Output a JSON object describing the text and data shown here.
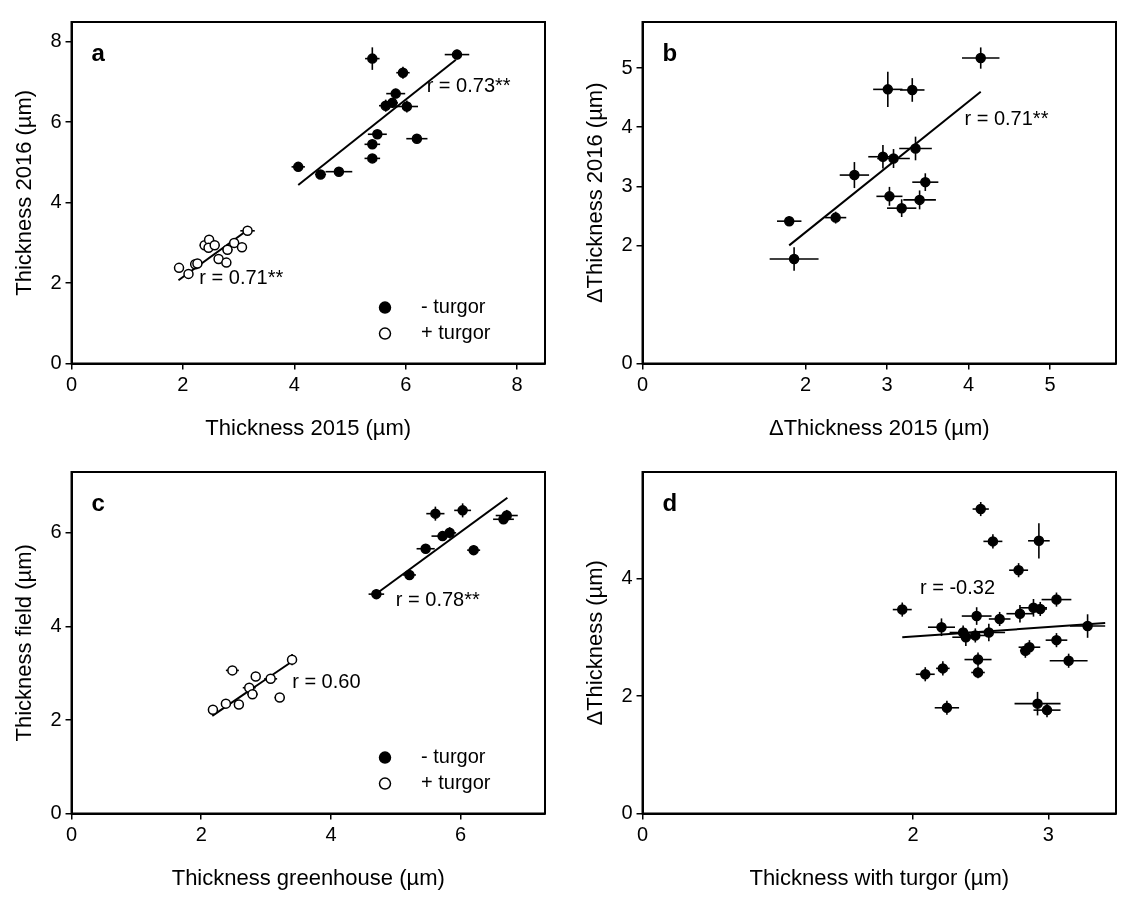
{
  "chart_data": [
    {
      "type": "scatter",
      "xlabel": "Thickness 2015 (µm)",
      "ylabel": "Thickness 2016 (µm)",
      "legend": "bottom right",
      "xlim": [
        0,
        8.5
      ],
      "xticks": [
        0,
        2,
        4,
        6,
        8
      ],
      "ylim": [
        0,
        8.49
      ],
      "yticks": [
        0,
        2,
        4,
        6,
        8
      ],
      "annotations": [
        "a",
        "r = 0.73**",
        "r = 0.71**"
      ],
      "series": [
        {
          "name": "- turgor",
          "color": "#000000",
          "marker": "circle",
          "x": [
            5.4,
            6.92,
            5.95,
            5.82,
            5.76,
            5.64,
            6.02,
            5.49,
            6.2,
            5.4,
            5.4,
            4.07,
            4.47,
            4.8
          ],
          "values": [
            7.58,
            7.68,
            7.23,
            6.71,
            6.48,
            6.41,
            6.39,
            5.7,
            5.59,
            5.45,
            5.1,
            4.89,
            4.7,
            4.77
          ],
          "xerrors": [
            0.13,
            0.22,
            0.12,
            0.17,
            0.1,
            0.12,
            0.2,
            0.17,
            0.19,
            0.14,
            0.14,
            0.12,
            0.1,
            0.24
          ],
          "errors": [
            0.28,
            0.12,
            0.15,
            0.12,
            0.1,
            0.15,
            0.15,
            0.09,
            0.09,
            0.09,
            0.09,
            null,
            0.09,
            0.1
          ]
        },
        {
          "name": "+ turgor",
          "color": "#ffffff",
          "marker": "circle",
          "x": [
            1.93,
            2.1,
            2.22,
            2.26,
            2.39,
            2.47,
            2.46,
            2.57,
            2.64,
            2.78,
            2.8,
            2.92,
            3.06,
            3.16
          ],
          "values": [
            2.38,
            2.23,
            2.47,
            2.49,
            2.94,
            3.08,
            2.88,
            2.94,
            2.6,
            2.51,
            2.83,
            3.0,
            2.89,
            3.3
          ],
          "xerrors": [
            null,
            null,
            0.09,
            0.09,
            0.09,
            null,
            null,
            0.09,
            null,
            null,
            0.09,
            null,
            0.09,
            0.13
          ],
          "errors": [
            null,
            null,
            null,
            null,
            null,
            0.1,
            null,
            null,
            null,
            null,
            null,
            null,
            null,
            0.1
          ]
        },
        {
          "type": "line",
          "color": "#000000",
          "marker": "none",
          "x": [
            4.07,
            6.9
          ],
          "values": [
            4.44,
            7.55
          ]
        },
        {
          "type": "line",
          "color": "#000000",
          "marker": "none",
          "x": [
            1.92,
            3.13
          ],
          "values": [
            2.07,
            3.29
          ]
        }
      ]
    },
    {
      "type": "scatter",
      "xlabel": "ΔThickness 2015 (µm)",
      "ylabel": "ΔThickness 2016 (µm)",
      "xlim": [
        0,
        5.81
      ],
      "xticks": [
        0,
        2,
        3,
        4,
        5
      ],
      "ylim": [
        0,
        5.78
      ],
      "yticks": [
        0,
        2,
        3,
        4,
        5
      ],
      "annotations": [
        "b",
        "r = 0.71**"
      ],
      "series": [
        {
          "color": "#000000",
          "marker": "circle",
          "x": [
            1.8,
            1.86,
            2.37,
            2.6,
            2.95,
            3.08,
            3.01,
            3.31,
            3.35,
            3.03,
            3.18,
            3.4,
            3.47,
            4.15
          ],
          "values": [
            2.41,
            1.77,
            2.47,
            3.19,
            3.5,
            3.47,
            4.64,
            4.63,
            3.64,
            2.83,
            2.63,
            2.77,
            3.07,
            5.17
          ],
          "xerrors": [
            0.15,
            0.3,
            0.13,
            0.18,
            0.18,
            0.2,
            0.18,
            0.15,
            0.2,
            0.16,
            0.18,
            0.2,
            0.16,
            0.23
          ],
          "errors": [
            0.08,
            0.2,
            0.1,
            0.22,
            0.2,
            0.16,
            0.3,
            0.2,
            0.2,
            0.16,
            0.15,
            0.16,
            0.15,
            0.18
          ]
        },
        {
          "type": "line",
          "color": "#000000",
          "marker": "none",
          "x": [
            1.8,
            4.15
          ],
          "values": [
            2.0,
            4.6
          ]
        }
      ]
    },
    {
      "type": "scatter",
      "xlabel": "Thickness greenhouse (µm)",
      "ylabel": "Thickness field (µm)",
      "legend": "bottom right",
      "xlim": [
        0,
        7.3
      ],
      "xticks": [
        0,
        2,
        4,
        6
      ],
      "ylim": [
        0,
        7.3
      ],
      "yticks": [
        0,
        2,
        4,
        6
      ],
      "annotations": [
        "c",
        "r = 0.78**",
        "r = 0.60"
      ],
      "series": [
        {
          "name": "- turgor",
          "color": "#000000",
          "marker": "circle",
          "x": [
            4.7,
            5.21,
            5.46,
            5.61,
            5.72,
            5.83,
            6.03,
            6.2,
            6.66,
            6.71
          ],
          "values": [
            4.69,
            5.1,
            5.66,
            6.41,
            5.93,
            6.0,
            6.48,
            5.63,
            6.29,
            6.37
          ],
          "xerrors": [
            0.12,
            0.1,
            0.14,
            0.14,
            0.17,
            0.1,
            0.13,
            0.1,
            0.16,
            0.17
          ],
          "errors": [
            0.1,
            0.1,
            0.1,
            0.15,
            0.1,
            0.12,
            0.15,
            0.1,
            0.1,
            0.12
          ]
        },
        {
          "name": "+ turgor",
          "color": "#ffffff",
          "marker": "circle",
          "x": [
            2.18,
            2.38,
            2.58,
            2.48,
            2.74,
            2.79,
            2.84,
            3.07,
            3.21,
            3.4
          ],
          "values": [
            2.22,
            2.35,
            2.33,
            3.06,
            2.69,
            2.55,
            2.93,
            2.88,
            2.48,
            3.29
          ],
          "xerrors": [
            null,
            null,
            null,
            0.1,
            0.1,
            0.08,
            null,
            0.1,
            0.08,
            null
          ],
          "errors": [
            null,
            null,
            null,
            null,
            0.09,
            0.1,
            null,
            null,
            null,
            0.12
          ]
        },
        {
          "type": "line",
          "color": "#000000",
          "marker": "none",
          "x": [
            4.72,
            6.72
          ],
          "values": [
            4.72,
            6.75
          ]
        },
        {
          "type": "line",
          "color": "#000000",
          "marker": "none",
          "x": [
            2.17,
            3.4
          ],
          "values": [
            2.09,
            3.25
          ]
        }
      ]
    },
    {
      "type": "scatter",
      "xlabel": "Thickness with turgor (µm)",
      "ylabel": "ΔThickness (µm)",
      "xlim": [
        0,
        3.5
      ],
      "xticks": [
        0,
        2,
        3
      ],
      "ylim": [
        0,
        5.81
      ],
      "yticks": [
        0,
        2,
        4
      ],
      "annotations": [
        "d",
        "r = -0.32"
      ],
      "series": [
        {
          "color": "#000000",
          "marker": "circle",
          "x": [
            1.92,
            2.09,
            2.21,
            2.22,
            2.25,
            2.37,
            2.39,
            2.46,
            2.47,
            2.48,
            2.48,
            2.5,
            2.56,
            2.59,
            2.64,
            2.78,
            2.79,
            2.83,
            2.86,
            2.89,
            2.94,
            2.93,
            2.92,
            2.99,
            3.06,
            3.06,
            3.15,
            3.29
          ],
          "values": [
            3.47,
            2.37,
            3.17,
            2.47,
            1.8,
            3.08,
            3.0,
            3.03,
            3.36,
            2.62,
            2.4,
            5.18,
            3.08,
            4.63,
            3.31,
            4.14,
            3.4,
            2.77,
            2.83,
            3.5,
            3.48,
            4.64,
            1.87,
            1.76,
            3.64,
            2.95,
            2.6,
            3.19
          ],
          "xerrors": [
            0.07,
            0.07,
            0.1,
            0.05,
            0.09,
            0.1,
            0.1,
            0.08,
            0.11,
            0.1,
            0.05,
            0.06,
            0.12,
            0.07,
            0.08,
            0.07,
            0.1,
            0.04,
            0.08,
            0.1,
            0.05,
            0.08,
            0.17,
            0.1,
            0.11,
            0.08,
            0.14,
            0.13
          ],
          "errors": [
            0.12,
            0.12,
            0.15,
            0.12,
            0.12,
            0.12,
            0.15,
            0.12,
            0.15,
            0.12,
            0.1,
            0.12,
            0.15,
            0.12,
            0.12,
            0.12,
            0.15,
            0.12,
            0.12,
            0.15,
            0.12,
            0.3,
            0.2,
            0.12,
            0.12,
            0.12,
            0.12,
            0.2
          ]
        },
        {
          "type": "line",
          "color": "#000000",
          "marker": "none",
          "x": [
            1.92,
            3.42
          ],
          "values": [
            3.0,
            3.24
          ]
        }
      ]
    }
  ]
}
